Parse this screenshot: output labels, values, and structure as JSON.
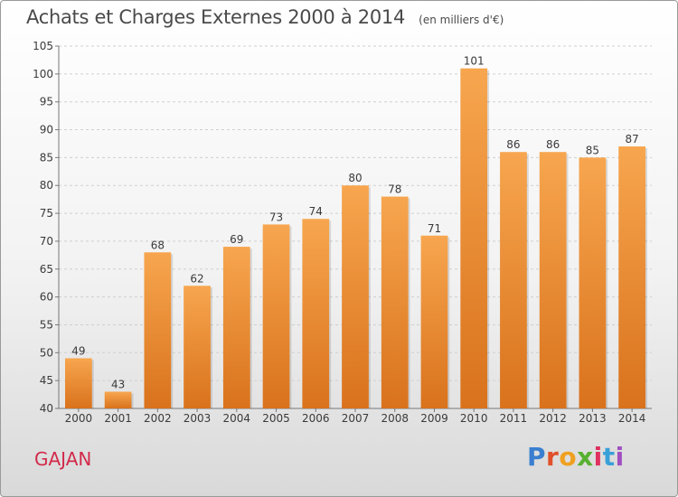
{
  "header": {
    "title": "Achats et Charges Externes 2000 à 2014",
    "subtitle": "(en milliers d'€)"
  },
  "footer": {
    "location": "GAJAN",
    "brand": "Proxiti"
  },
  "brand_letter_colors": [
    "#3a7fd0",
    "#e0502a",
    "#f0a020",
    "#58b030",
    "#e03060",
    "#3aa0d8",
    "#a050c0"
  ],
  "colors": {
    "bar_light": "#f7a64f",
    "bar_dark": "#d9721c",
    "grid": "#cfcfcf"
  },
  "chart_data": {
    "type": "bar",
    "title": "Achats et Charges Externes 2000 à 2014",
    "subtitle": "(en milliers d'€)",
    "categories": [
      "2000",
      "2001",
      "2002",
      "2003",
      "2004",
      "2005",
      "2006",
      "2007",
      "2008",
      "2009",
      "2010",
      "2011",
      "2012",
      "2013",
      "2014"
    ],
    "values": [
      49,
      43,
      68,
      62,
      69,
      73,
      74,
      80,
      78,
      71,
      101,
      86,
      86,
      85,
      87
    ],
    "ylim": [
      40,
      105
    ],
    "yticks": [
      40,
      45,
      50,
      55,
      60,
      65,
      70,
      75,
      80,
      85,
      90,
      95,
      100,
      105
    ],
    "grid": true,
    "legend": "none"
  }
}
